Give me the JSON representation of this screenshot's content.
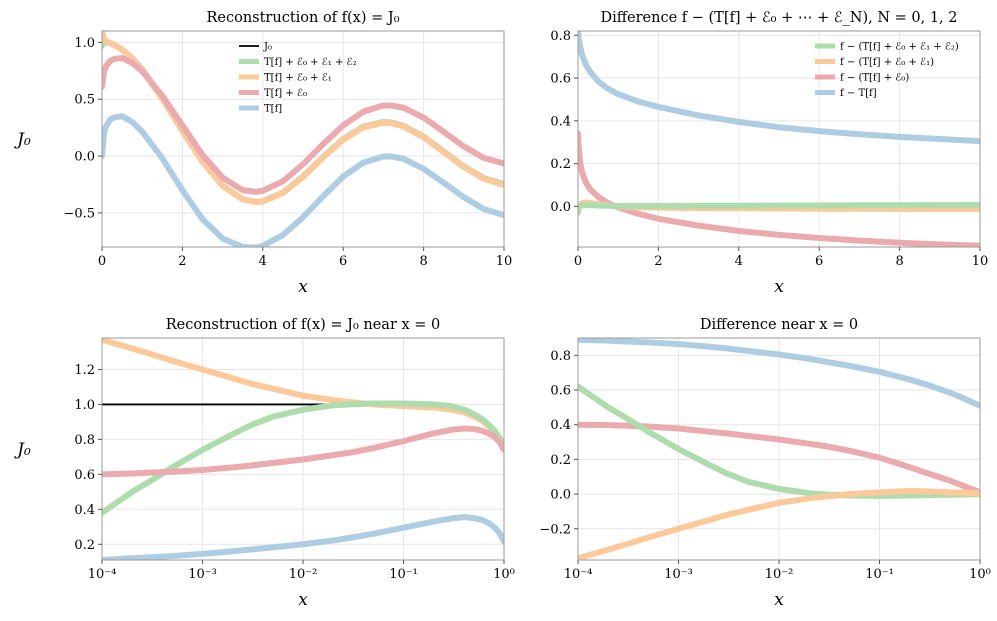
{
  "colors": {
    "blue": "#aecde3",
    "red": "#ebaaae",
    "orange": "#fcc99b",
    "green": "#afdcad",
    "black": "#000000",
    "grid": "#e6e6e6",
    "frame": "#999999"
  },
  "chart_data": [
    {
      "id": "top-left",
      "type": "line",
      "title": "Reconstruction of f(x) = J₀",
      "xlabel": "x",
      "ylabel": "J₀",
      "xscale": "linear",
      "xlim": [
        0,
        10
      ],
      "ylim": [
        -0.8,
        1.1
      ],
      "xticks": [
        0,
        2,
        4,
        6,
        8,
        10
      ],
      "xtick_labels": [
        "0",
        "2",
        "4",
        "6",
        "8",
        "10"
      ],
      "yticks": [
        -0.5,
        0.0,
        0.5,
        1.0
      ],
      "ytick_labels": [
        "−0.5",
        "0.0",
        "0.5",
        "1.0"
      ],
      "grid": true,
      "legend": "top-center",
      "legend_entries": [
        "J₀",
        "T[f] + ℰ₀ + ℰ₁ + ℰ₂",
        "T[f] + ℰ₀ + ℰ₁",
        "T[f] + ℰ₀",
        "T[f]"
      ],
      "x": [
        0,
        0.05,
        0.1,
        0.2,
        0.3,
        0.5,
        0.75,
        1,
        1.5,
        2,
        2.5,
        3,
        3.5,
        3.83,
        4,
        4.5,
        5,
        5.5,
        6,
        6.5,
        7,
        7.2,
        7.5,
        8,
        8.5,
        9,
        9.5,
        10
      ],
      "series": [
        {
          "name": "J₀",
          "color_key": "black",
          "width": 1.8,
          "values": [
            1,
            0.999,
            0.998,
            0.99,
            0.978,
            0.938,
            0.862,
            0.765,
            0.512,
            0.224,
            -0.048,
            -0.26,
            -0.38,
            -0.403,
            -0.397,
            -0.321,
            -0.178,
            -0.007,
            0.151,
            0.26,
            0.3,
            0.295,
            0.266,
            0.172,
            0.042,
            -0.09,
            -0.194,
            -0.246
          ]
        },
        {
          "name": "T[f] + ℰ₀ + ℰ₁ + ℰ₂",
          "color_key": "green",
          "width": 6,
          "values": [
            0.97,
            1.005,
            1.002,
            0.992,
            0.978,
            0.938,
            0.862,
            0.765,
            0.512,
            0.224,
            -0.048,
            -0.26,
            -0.38,
            -0.403,
            -0.397,
            -0.321,
            -0.178,
            -0.007,
            0.151,
            0.26,
            0.3,
            0.295,
            0.266,
            0.172,
            0.042,
            -0.09,
            -0.194,
            -0.246
          ]
        },
        {
          "name": "T[f] + ℰ₀ + ℰ₁",
          "color_key": "orange",
          "width": 6,
          "values": [
            1.1,
            1.03,
            1.01,
            0.995,
            0.98,
            0.935,
            0.855,
            0.758,
            0.505,
            0.22,
            -0.05,
            -0.262,
            -0.382,
            -0.405,
            -0.4,
            -0.325,
            -0.183,
            -0.013,
            0.144,
            0.253,
            0.293,
            0.289,
            0.26,
            0.165,
            0.035,
            -0.097,
            -0.2,
            -0.255
          ]
        },
        {
          "name": "T[f] + ℰ₀",
          "color_key": "red",
          "width": 6,
          "values": [
            0.61,
            0.74,
            0.79,
            0.835,
            0.855,
            0.862,
            0.82,
            0.745,
            0.53,
            0.27,
            0.01,
            -0.19,
            -0.3,
            -0.315,
            -0.305,
            -0.222,
            -0.072,
            0.105,
            0.27,
            0.39,
            0.445,
            0.445,
            0.425,
            0.338,
            0.213,
            0.085,
            -0.017,
            -0.065
          ]
        },
        {
          "name": "T[f]",
          "color_key": "blue",
          "width": 6,
          "values": [
            0.0,
            0.2,
            0.26,
            0.32,
            0.34,
            0.35,
            0.3,
            0.215,
            -0.02,
            -0.3,
            -0.555,
            -0.725,
            -0.8,
            -0.805,
            -0.79,
            -0.695,
            -0.538,
            -0.353,
            -0.18,
            -0.058,
            -0.004,
            -0.003,
            -0.024,
            -0.112,
            -0.234,
            -0.362,
            -0.467,
            -0.52
          ]
        }
      ]
    },
    {
      "id": "top-right",
      "type": "line",
      "title": "Difference f − (T[f] + ℰ₀ + ⋯ + ℰ_N),   N = 0, 1, 2",
      "xlabel": "x",
      "ylabel": "",
      "xscale": "linear",
      "xlim": [
        0,
        10
      ],
      "ylim": [
        -0.19,
        0.82
      ],
      "xticks": [
        0,
        2,
        4,
        6,
        8,
        10
      ],
      "xtick_labels": [
        "0",
        "2",
        "4",
        "6",
        "8",
        "10"
      ],
      "yticks": [
        0.0,
        0.2,
        0.4,
        0.6,
        0.8
      ],
      "ytick_labels": [
        "0.0",
        "0.2",
        "0.4",
        "0.6",
        "0.8"
      ],
      "grid": true,
      "legend": "top-right",
      "legend_entries": [
        "f − (T[f] + ℰ₀ + ℰ₁ + ℰ₂)",
        "f − (T[f] + ℰ₀ + ℰ₁)",
        "f − (T[f] + ℰ₀)",
        "f − T[f]"
      ],
      "x": [
        0,
        0.02,
        0.05,
        0.1,
        0.2,
        0.3,
        0.5,
        0.75,
        1,
        1.5,
        2,
        3,
        4,
        5,
        6,
        7,
        8,
        9,
        10
      ],
      "series": [
        {
          "name": "f − T[f]",
          "color_key": "blue",
          "width": 6,
          "values": [
            0.81,
            0.78,
            0.75,
            0.71,
            0.66,
            0.63,
            0.585,
            0.55,
            0.525,
            0.49,
            0.465,
            0.425,
            0.395,
            0.37,
            0.352,
            0.337,
            0.325,
            0.315,
            0.305
          ]
        },
        {
          "name": "f − (T[f] + ℰ₀)",
          "color_key": "red",
          "width": 6,
          "values": [
            0.34,
            0.27,
            0.21,
            0.16,
            0.11,
            0.08,
            0.045,
            0.015,
            -0.005,
            -0.035,
            -0.058,
            -0.09,
            -0.115,
            -0.133,
            -0.148,
            -0.16,
            -0.17,
            -0.178,
            -0.184
          ]
        },
        {
          "name": "f − (T[f] + ℰ₀ + ℰ₁)",
          "color_key": "orange",
          "width": 6,
          "values": [
            -0.03,
            -0.01,
            0.005,
            0.015,
            0.018,
            0.016,
            0.01,
            0.005,
            0.0,
            -0.004,
            -0.006,
            -0.008,
            -0.009,
            -0.01,
            -0.011,
            -0.011,
            -0.012,
            -0.012,
            -0.012
          ]
        },
        {
          "name": "f − (T[f] + ℰ₀ + ℰ₁ + ℰ₂)",
          "color_key": "green",
          "width": 6,
          "values": [
            -0.02,
            -0.01,
            0.0,
            0.004,
            0.006,
            0.006,
            0.004,
            0.003,
            0.002,
            0.002,
            0.002,
            0.003,
            0.003,
            0.004,
            0.004,
            0.005,
            0.005,
            0.006,
            0.006
          ]
        }
      ]
    },
    {
      "id": "bottom-left",
      "type": "line",
      "title": "Reconstruction of f(x) = J₀ near x = 0",
      "xlabel": "x",
      "ylabel": "J₀",
      "xscale": "log",
      "xlim": [
        0.0001,
        1
      ],
      "ylim": [
        0.11,
        1.38
      ],
      "xticks": [
        0.0001,
        0.001,
        0.01,
        0.1,
        1
      ],
      "xtick_labels": [
        "10⁻⁴",
        "10⁻³",
        "10⁻²",
        "10⁻¹",
        "10⁰"
      ],
      "yticks": [
        0.2,
        0.4,
        0.6,
        0.8,
        1.0,
        1.2
      ],
      "ytick_labels": [
        "0.2",
        "0.4",
        "0.6",
        "0.8",
        "1.0",
        "1.2"
      ],
      "grid": true,
      "legend": "none",
      "x": [
        0.0001,
        0.0002,
        0.0003,
        0.0005,
        0.001,
        0.002,
        0.003,
        0.005,
        0.01,
        0.02,
        0.03,
        0.05,
        0.1,
        0.2,
        0.3,
        0.4,
        0.5,
        0.6,
        0.7,
        0.8,
        0.9,
        1
      ],
      "series": [
        {
          "name": "J₀",
          "color_key": "black",
          "width": 1.8,
          "values": [
            1,
            1,
            1,
            1,
            1,
            1,
            1,
            1,
            1,
            1,
            1,
            0.999,
            0.998,
            0.99,
            0.978,
            0.96,
            0.938,
            0.912,
            0.881,
            0.846,
            0.808,
            0.765
          ]
        },
        {
          "name": "T[f] + ℰ₀ + ℰ₁",
          "color_key": "orange",
          "width": 6,
          "values": [
            1.37,
            1.32,
            1.29,
            1.25,
            1.2,
            1.15,
            1.12,
            1.09,
            1.05,
            1.025,
            1.013,
            1.0,
            0.99,
            0.982,
            0.97,
            0.955,
            0.933,
            0.907,
            0.876,
            0.842,
            0.803,
            0.76
          ]
        },
        {
          "name": "T[f] + ℰ₀ + ℰ₁ + ℰ₂",
          "color_key": "green",
          "width": 6,
          "values": [
            0.38,
            0.5,
            0.56,
            0.64,
            0.74,
            0.83,
            0.88,
            0.93,
            0.97,
            0.995,
            1.0,
            1.005,
            1.005,
            1.0,
            0.99,
            0.97,
            0.945,
            0.918,
            0.886,
            0.85,
            0.81,
            0.765
          ]
        },
        {
          "name": "T[f] + ℰ₀",
          "color_key": "red",
          "width": 6,
          "values": [
            0.6,
            0.605,
            0.61,
            0.615,
            0.625,
            0.64,
            0.65,
            0.665,
            0.685,
            0.71,
            0.725,
            0.75,
            0.79,
            0.835,
            0.855,
            0.862,
            0.86,
            0.85,
            0.835,
            0.815,
            0.785,
            0.74
          ]
        },
        {
          "name": "T[f]",
          "color_key": "blue",
          "width": 6,
          "values": [
            0.11,
            0.12,
            0.125,
            0.133,
            0.145,
            0.16,
            0.17,
            0.182,
            0.2,
            0.222,
            0.238,
            0.26,
            0.295,
            0.33,
            0.348,
            0.355,
            0.35,
            0.34,
            0.322,
            0.298,
            0.265,
            0.215
          ]
        }
      ]
    },
    {
      "id": "bottom-right",
      "type": "line",
      "title": "Difference near x = 0",
      "xlabel": "x",
      "ylabel": "",
      "xscale": "log",
      "xlim": [
        0.0001,
        1
      ],
      "ylim": [
        -0.38,
        0.9
      ],
      "xticks": [
        0.0001,
        0.001,
        0.01,
        0.1,
        1
      ],
      "xtick_labels": [
        "10⁻⁴",
        "10⁻³",
        "10⁻²",
        "10⁻¹",
        "10⁰"
      ],
      "yticks": [
        -0.2,
        0.0,
        0.2,
        0.4,
        0.6,
        0.8
      ],
      "ytick_labels": [
        "−0.2",
        "0.0",
        "0.2",
        "0.4",
        "0.6",
        "0.8"
      ],
      "grid": true,
      "legend": "none",
      "x": [
        0.0001,
        0.0002,
        0.0003,
        0.0005,
        0.001,
        0.002,
        0.003,
        0.005,
        0.01,
        0.02,
        0.03,
        0.05,
        0.1,
        0.2,
        0.3,
        0.5,
        0.7,
        1
      ],
      "series": [
        {
          "name": "f − T[f]",
          "color_key": "blue",
          "width": 6,
          "values": [
            0.89,
            0.885,
            0.88,
            0.875,
            0.865,
            0.85,
            0.84,
            0.825,
            0.805,
            0.78,
            0.762,
            0.74,
            0.705,
            0.66,
            0.63,
            0.585,
            0.55,
            0.51
          ]
        },
        {
          "name": "f − (T[f] + ℰ₀)",
          "color_key": "red",
          "width": 6,
          "values": [
            0.4,
            0.398,
            0.395,
            0.39,
            0.378,
            0.36,
            0.35,
            0.335,
            0.315,
            0.29,
            0.275,
            0.25,
            0.21,
            0.155,
            0.12,
            0.078,
            0.045,
            0.01
          ]
        },
        {
          "name": "f − (T[f] + ℰ₀ + ℰ₁ + ℰ₂)",
          "color_key": "green",
          "width": 6,
          "values": [
            0.62,
            0.5,
            0.44,
            0.36,
            0.26,
            0.17,
            0.12,
            0.07,
            0.03,
            0.005,
            -0.003,
            -0.008,
            -0.01,
            -0.008,
            -0.006,
            -0.004,
            -0.002,
            0.0
          ]
        },
        {
          "name": "f − (T[f] + ℰ₀ + ℰ₁)",
          "color_key": "orange",
          "width": 6,
          "values": [
            -0.37,
            -0.32,
            -0.29,
            -0.25,
            -0.2,
            -0.15,
            -0.12,
            -0.09,
            -0.05,
            -0.025,
            -0.013,
            0.0,
            0.01,
            0.018,
            0.016,
            0.01,
            0.008,
            0.005
          ]
        }
      ]
    }
  ]
}
